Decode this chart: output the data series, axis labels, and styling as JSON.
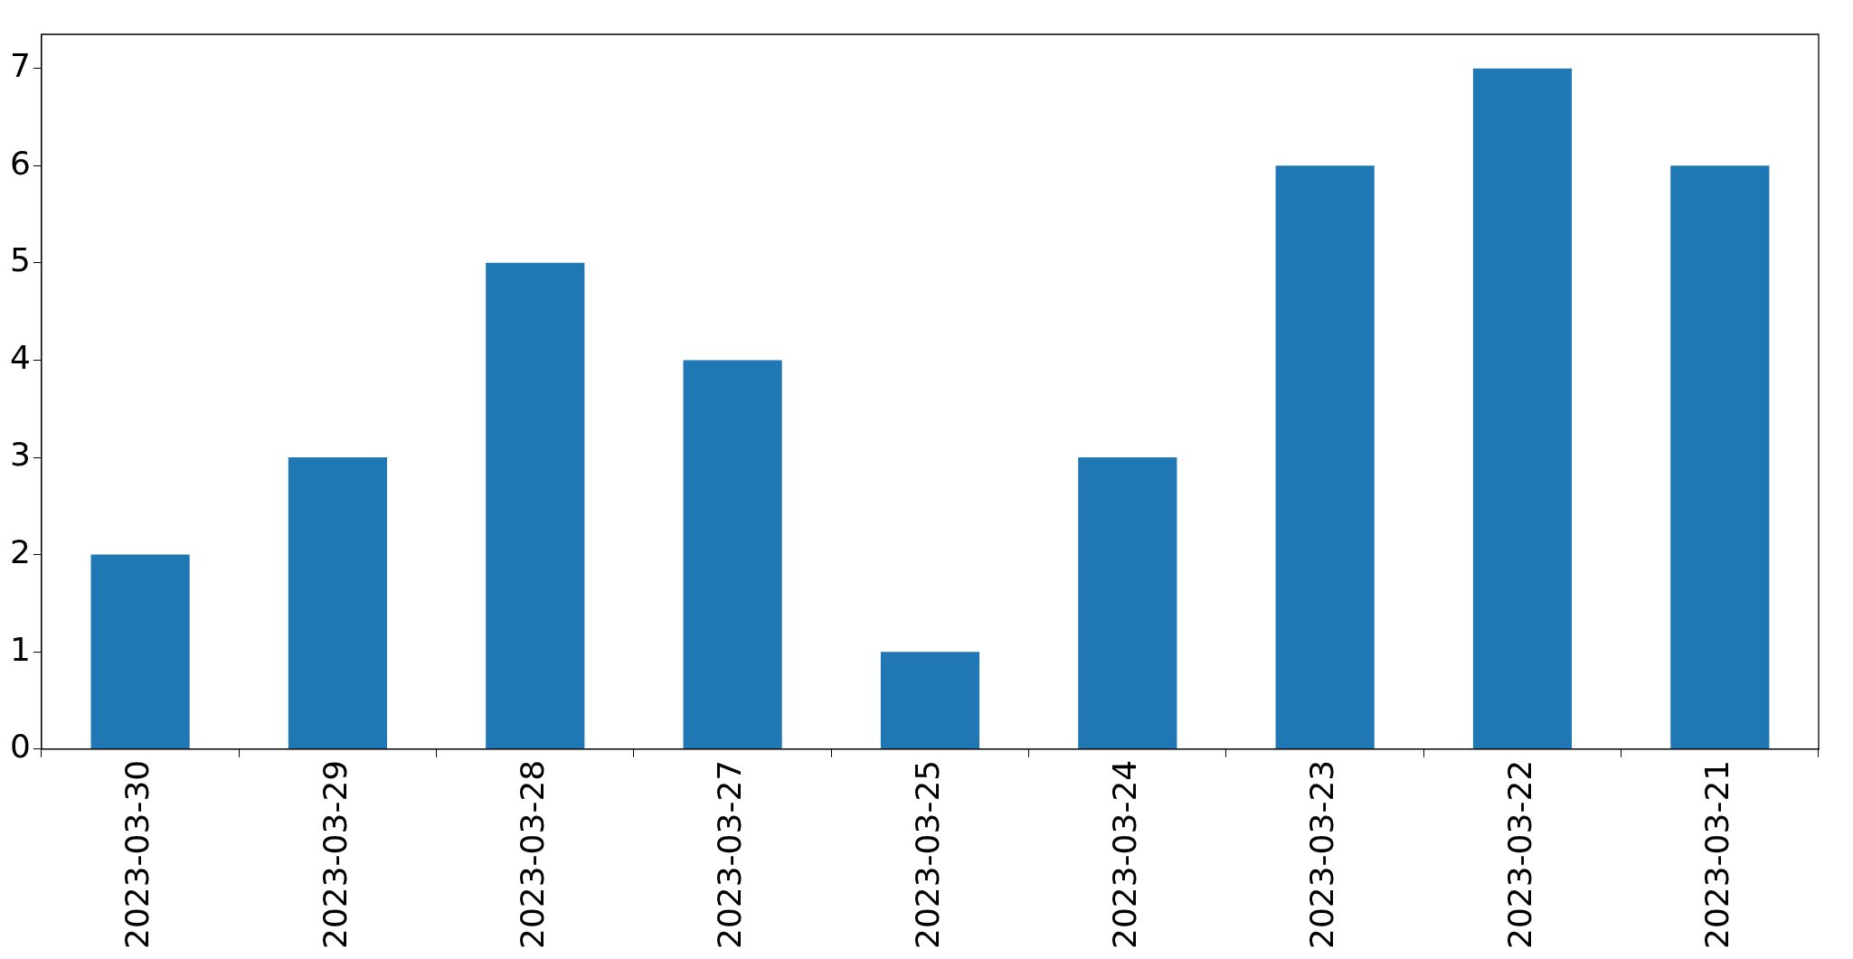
{
  "chart_data": {
    "type": "bar",
    "categories": [
      "2023-03-30",
      "2023-03-29",
      "2023-03-28",
      "2023-03-27",
      "2023-03-25",
      "2023-03-24",
      "2023-03-23",
      "2023-03-22",
      "2023-03-21"
    ],
    "values": [
      2,
      3,
      5,
      4,
      1,
      3,
      6,
      7,
      6
    ],
    "color": "#1f77b4",
    "ylim": [
      0,
      7.35
    ],
    "yticks": [
      0,
      1,
      2,
      3,
      4,
      5,
      6,
      7
    ]
  }
}
